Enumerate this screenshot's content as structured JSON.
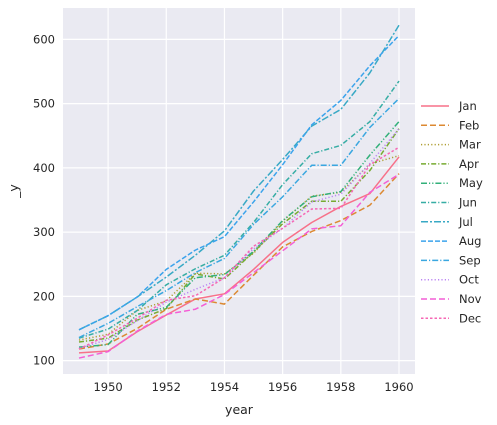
{
  "chart_data": {
    "type": "line",
    "xlabel": "year",
    "ylabel": "_y",
    "xlim": [
      1948.45,
      1960.55
    ],
    "ylim": [
      79.2,
      648.8
    ],
    "x_ticks": [
      1950,
      1952,
      1954,
      1956,
      1958,
      1960
    ],
    "y_ticks": [
      100,
      200,
      300,
      400,
      500,
      600
    ],
    "grid": true,
    "legend_position": "right",
    "x": [
      1949,
      1950,
      1951,
      1952,
      1953,
      1954,
      1955,
      1956,
      1957,
      1958,
      1959,
      1960
    ],
    "series": [
      {
        "name": "Jan",
        "color": "#f77189",
        "dash": "",
        "values": [
          112,
          115,
          145,
          171,
          196,
          204,
          242,
          284,
          315,
          340,
          360,
          417
        ]
      },
      {
        "name": "Feb",
        "color": "#dc8932",
        "dash": "6,3",
        "values": [
          118,
          126,
          150,
          180,
          196,
          188,
          233,
          277,
          301,
          318,
          342,
          391
        ]
      },
      {
        "name": "Mar",
        "color": "#ae9d31",
        "dash": "1.2,2.2",
        "values": [
          132,
          141,
          178,
          193,
          236,
          235,
          267,
          317,
          356,
          362,
          406,
          419
        ]
      },
      {
        "name": "Apr",
        "color": "#77ab31",
        "dash": "5,2,1.2,2",
        "values": [
          129,
          135,
          163,
          181,
          235,
          227,
          269,
          313,
          348,
          348,
          396,
          461
        ]
      },
      {
        "name": "May",
        "color": "#33b07a",
        "dash": "6,2,1.2,2,1.2,2",
        "values": [
          121,
          125,
          172,
          183,
          229,
          234,
          270,
          318,
          355,
          363,
          420,
          472
        ]
      },
      {
        "name": "Jun",
        "color": "#36ada4",
        "dash": "5,2,1.2,2",
        "values": [
          135,
          149,
          178,
          218,
          243,
          264,
          315,
          374,
          422,
          435,
          472,
          535
        ]
      },
      {
        "name": "Jul",
        "color": "#38a9c5",
        "dash": "7,2,2,2",
        "values": [
          148,
          170,
          199,
          230,
          264,
          302,
          364,
          413,
          465,
          491,
          548,
          622
        ]
      },
      {
        "name": "Aug",
        "color": "#3ba3ec",
        "dash": "5,2",
        "values": [
          148,
          170,
          199,
          242,
          272,
          293,
          347,
          405,
          467,
          505,
          559,
          606
        ]
      },
      {
        "name": "Sep",
        "color": "#3aa7e0",
        "dash": "6,2,1.2,2",
        "values": [
          136,
          158,
          184,
          209,
          237,
          259,
          312,
          355,
          404,
          404,
          463,
          508
        ]
      },
      {
        "name": "Oct",
        "color": "#bb83f4",
        "dash": "1.2,2.2",
        "values": [
          119,
          133,
          162,
          191,
          211,
          229,
          274,
          306,
          347,
          359,
          407,
          461
        ]
      },
      {
        "name": "Nov",
        "color": "#f45fd6",
        "dash": "6,3",
        "values": [
          104,
          114,
          146,
          172,
          180,
          203,
          237,
          271,
          305,
          310,
          362,
          390
        ]
      },
      {
        "name": "Dec",
        "color": "#f667b4",
        "dash": "2.5,2",
        "values": [
          118,
          140,
          166,
          194,
          201,
          229,
          278,
          306,
          336,
          337,
          405,
          432
        ]
      }
    ]
  }
}
